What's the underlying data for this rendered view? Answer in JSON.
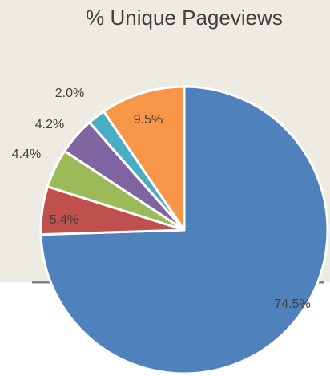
{
  "chart_data": {
    "type": "pie",
    "title": "% Unique Pageviews",
    "values": [
      74.5,
      5.4,
      4.4,
      4.2,
      2.0,
      9.5
    ],
    "value_labels": [
      "74.5%",
      "5.4%",
      "4.4%",
      "4.2%",
      "2.0%",
      "9.5%"
    ],
    "colors": [
      "#4f81bd",
      "#c0504d",
      "#9bbb59",
      "#8064a2",
      "#4bacc6",
      "#f79646"
    ]
  }
}
